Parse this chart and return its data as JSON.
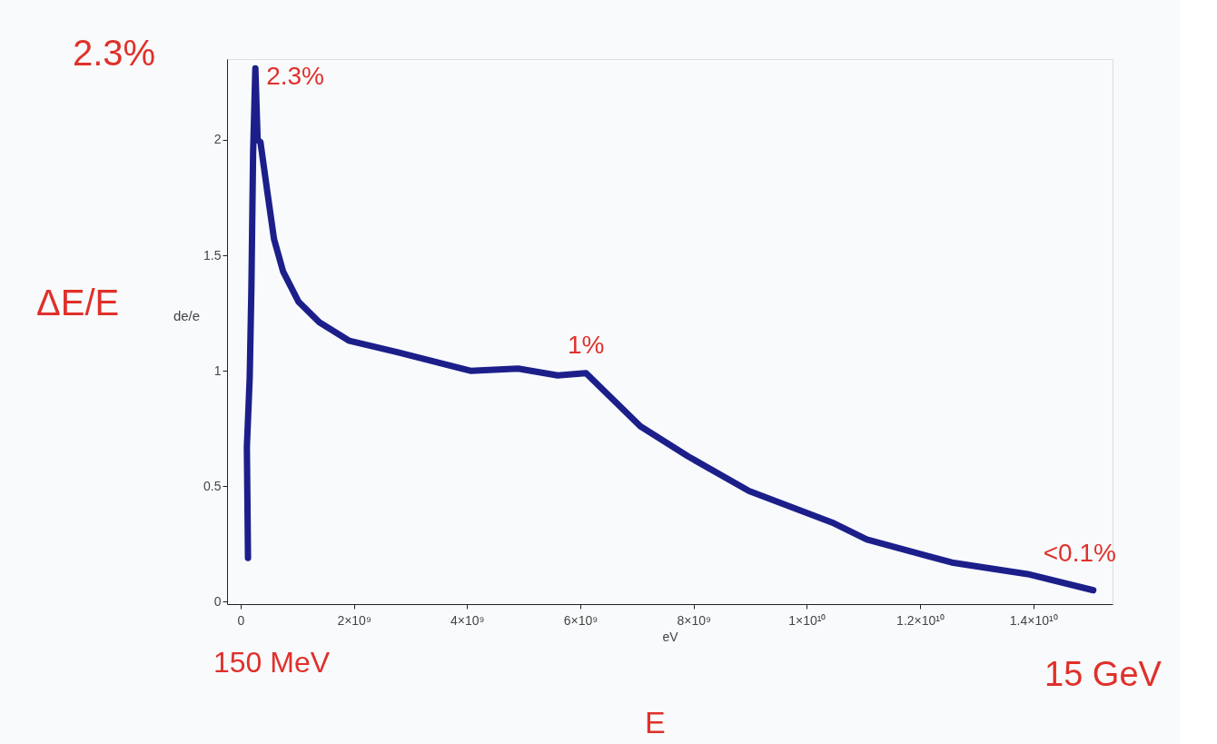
{
  "chart_data": {
    "type": "line",
    "xlabel": "eV",
    "ylabel": "de/e",
    "series": [
      {
        "color": "#1c1f8a",
        "x": [
          130000000.0,
          110000000.0,
          160000000.0,
          190000000.0,
          220000000.0,
          260000000.0,
          300000000.0,
          350000000.0,
          480000000.0,
          590000000.0,
          750000000.0,
          1020000000.0,
          1390000000.0,
          1920000000.0,
          2780000000.0,
          4060000000.0,
          4900000000.0,
          5600000000.0,
          6100000000.0,
          7060000000.0,
          7900000000.0,
          8980000000.0,
          10480000000.0,
          11060000000.0,
          12560000000.0,
          13900000000.0,
          15060000000.0
        ],
        "values": [
          0.19,
          0.67,
          0.97,
          1.36,
          1.94,
          2.31,
          2.0,
          1.99,
          1.76,
          1.57,
          1.43,
          1.3,
          1.21,
          1.13,
          1.08,
          1.0,
          1.01,
          0.98,
          0.99,
          0.76,
          0.63,
          0.48,
          0.34,
          0.27,
          0.17,
          0.12,
          0.05
        ]
      }
    ],
    "xlim": [
      -240000000.0,
      15400000000.0
    ],
    "xticks": [
      0,
      {
        "value": 2000000000.0,
        "label": "2×10⁹"
      },
      {
        "value": 4000000000.0,
        "label": "4×10⁹"
      },
      {
        "value": 6000000000.0,
        "label": "6×10⁹"
      },
      {
        "value": 8000000000.0,
        "label": "8×10⁹"
      },
      {
        "value": 10000000000.0,
        "label": "1×10¹⁰"
      },
      {
        "value": 12000000000.0,
        "label": "1.2×10¹⁰"
      },
      {
        "value": 14000000000.0,
        "label": "1.4×10¹⁰"
      }
    ],
    "ylim": [
      -0.01,
      2.35
    ],
    "yticks": [
      0,
      0.5,
      1,
      1.5,
      2
    ],
    "grid": false,
    "line_style": "solid",
    "annotations": [
      "2.3%",
      "ΔE/E",
      "150 MeV",
      "15 GeV",
      "E",
      {
        "text": "2.3%",
        "x": 260000000.0,
        "y": 2.31
      },
      {
        "text": "1%",
        "x": 6100000000.0,
        "y": 0.99
      },
      {
        "text": "<0.1%",
        "x": 15060000000.0,
        "y": 0.05
      }
    ]
  }
}
